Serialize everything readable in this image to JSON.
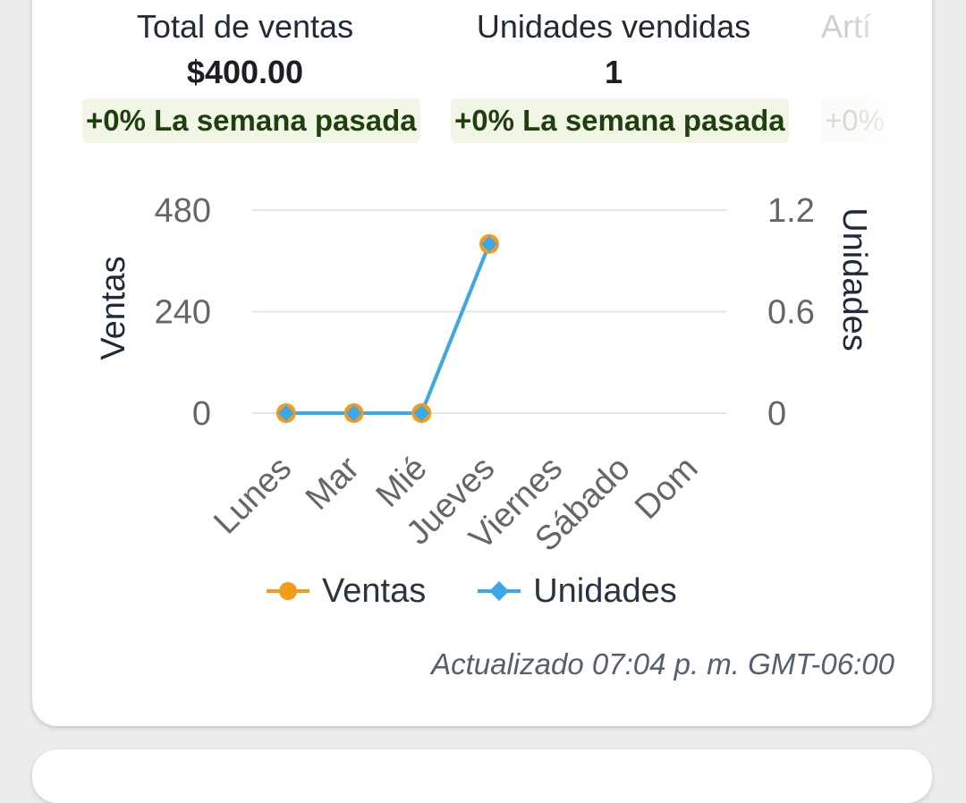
{
  "stats": [
    {
      "title": "Total de ventas",
      "value": "$400.00",
      "badge": "+0% La semana pasada"
    },
    {
      "title": "Unidades vendidas",
      "value": "1",
      "badge": "+0% La semana pasada"
    },
    {
      "title": "Artí",
      "value": "",
      "badge": "+0%"
    }
  ],
  "colors": {
    "ventas": "#f59b1b",
    "unidades": "#3aa9e6",
    "badge_bg": "#f1f6e6",
    "badge_text": "#1f3f0e"
  },
  "chart_data": {
    "type": "line",
    "categories": [
      "Lunes",
      "Mar",
      "Mié",
      "Jueves",
      "Viernes",
      "Sábado",
      "Dom"
    ],
    "series": [
      {
        "name": "Ventas",
        "axis": "left",
        "values": [
          0,
          0,
          0,
          400,
          null,
          null,
          null
        ],
        "color": "#f59b1b",
        "marker": "circle"
      },
      {
        "name": "Unidades",
        "axis": "right",
        "values": [
          0,
          0,
          0,
          1,
          null,
          null,
          null
        ],
        "color": "#3aa9e6",
        "marker": "diamond"
      }
    ],
    "ylabel_left": "Ventas",
    "ylabel_right": "Unidades",
    "ylim_left": [
      0,
      480
    ],
    "ylim_right": [
      0,
      1.2
    ],
    "yticks_left": [
      "0",
      "240",
      "480"
    ],
    "yticks_right": [
      "0",
      "0.6",
      "1.2"
    ],
    "grid": true,
    "legend": "bottom"
  },
  "legend": {
    "ventas_label": "Ventas",
    "unidades_label": "Unidades"
  },
  "footer": {
    "updated": "Actualizado 07:04 p. m. GMT-06:00"
  }
}
